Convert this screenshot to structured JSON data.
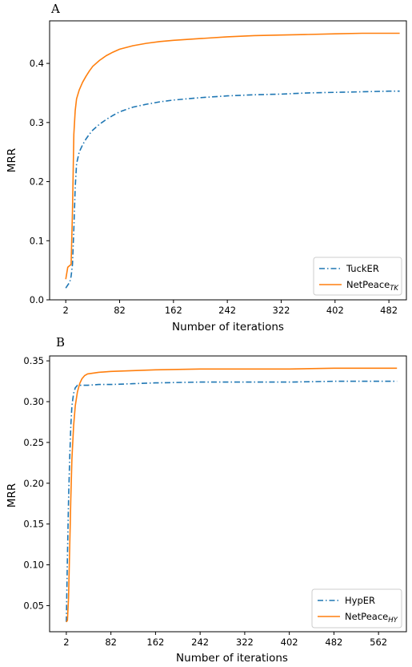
{
  "chart_data": [
    {
      "type": "line",
      "panel_label": "A",
      "xlabel": "Number of iterations",
      "ylabel": "MRR",
      "xlim": [
        -22,
        508
      ],
      "ylim": [
        0,
        0.472
      ],
      "x_ticks": [
        2,
        82,
        162,
        242,
        322,
        402,
        482
      ],
      "y_ticks": [
        0.0,
        0.1,
        0.2,
        0.3,
        0.4
      ],
      "y_tick_labels": [
        "0.0",
        "0.1",
        "0.2",
        "0.3",
        "0.4"
      ],
      "legend_position": "bottom-right",
      "series": [
        {
          "name": "TuckER",
          "subscript": "",
          "color": "#1f77b4",
          "style": "dashdot",
          "x": [
            2,
            5,
            8,
            10,
            12,
            14,
            16,
            18,
            22,
            27,
            32,
            37,
            42,
            52,
            62,
            72,
            82,
            102,
            122,
            142,
            162,
            202,
            242,
            282,
            322,
            362,
            402,
            442,
            482,
            498
          ],
          "y": [
            0.02,
            0.025,
            0.03,
            0.04,
            0.06,
            0.12,
            0.19,
            0.23,
            0.25,
            0.262,
            0.272,
            0.28,
            0.287,
            0.297,
            0.305,
            0.312,
            0.318,
            0.326,
            0.331,
            0.335,
            0.338,
            0.342,
            0.345,
            0.347,
            0.348,
            0.35,
            0.351,
            0.352,
            0.353,
            0.353
          ]
        },
        {
          "name": "NetPeace",
          "subscript": "TK",
          "color": "#ff7f0e",
          "style": "solid",
          "x": [
            2,
            5,
            8,
            10,
            12,
            14,
            16,
            18,
            22,
            27,
            32,
            37,
            42,
            52,
            62,
            72,
            82,
            102,
            122,
            142,
            162,
            202,
            242,
            282,
            322,
            362,
            402,
            442,
            482,
            498
          ],
          "y": [
            0.035,
            0.055,
            0.058,
            0.06,
            0.15,
            0.28,
            0.32,
            0.34,
            0.355,
            0.368,
            0.378,
            0.387,
            0.395,
            0.405,
            0.413,
            0.419,
            0.424,
            0.43,
            0.434,
            0.437,
            0.439,
            0.442,
            0.445,
            0.447,
            0.448,
            0.449,
            0.45,
            0.451,
            0.451,
            0.451
          ]
        }
      ]
    },
    {
      "type": "line",
      "panel_label": "B",
      "xlabel": "Number of iterations",
      "ylabel": "MRR",
      "xlim": [
        -28,
        612
      ],
      "ylim": [
        0.018,
        0.356
      ],
      "x_ticks": [
        2,
        82,
        162,
        242,
        322,
        402,
        482,
        562
      ],
      "y_ticks": [
        0.05,
        0.1,
        0.15,
        0.2,
        0.25,
        0.3,
        0.35
      ],
      "y_tick_labels": [
        "0.05",
        "0.10",
        "0.15",
        "0.20",
        "0.25",
        "0.30",
        "0.35"
      ],
      "legend_position": "bottom-right",
      "series": [
        {
          "name": "HypER",
          "subscript": "",
          "color": "#1f77b4",
          "style": "dashdot",
          "x": [
            2,
            4,
            6,
            8,
            10,
            12,
            15,
            18,
            22,
            26,
            30,
            40,
            60,
            82,
            122,
            162,
            242,
            322,
            402,
            482,
            562,
            595
          ],
          "y": [
            0.03,
            0.11,
            0.18,
            0.23,
            0.27,
            0.295,
            0.31,
            0.317,
            0.32,
            0.32,
            0.32,
            0.32,
            0.321,
            0.321,
            0.322,
            0.323,
            0.324,
            0.324,
            0.324,
            0.325,
            0.325,
            0.325
          ]
        },
        {
          "name": "NetPeace",
          "subscript": "HY",
          "color": "#ff7f0e",
          "style": "solid",
          "x": [
            2,
            4,
            6,
            8,
            10,
            12,
            15,
            18,
            22,
            26,
            30,
            35,
            40,
            50,
            60,
            82,
            122,
            162,
            242,
            322,
            402,
            482,
            562,
            595
          ],
          "y": [
            0.03,
            0.032,
            0.06,
            0.12,
            0.18,
            0.23,
            0.27,
            0.295,
            0.312,
            0.322,
            0.328,
            0.332,
            0.334,
            0.335,
            0.336,
            0.337,
            0.338,
            0.339,
            0.34,
            0.34,
            0.34,
            0.341,
            0.341,
            0.341
          ]
        }
      ]
    }
  ]
}
